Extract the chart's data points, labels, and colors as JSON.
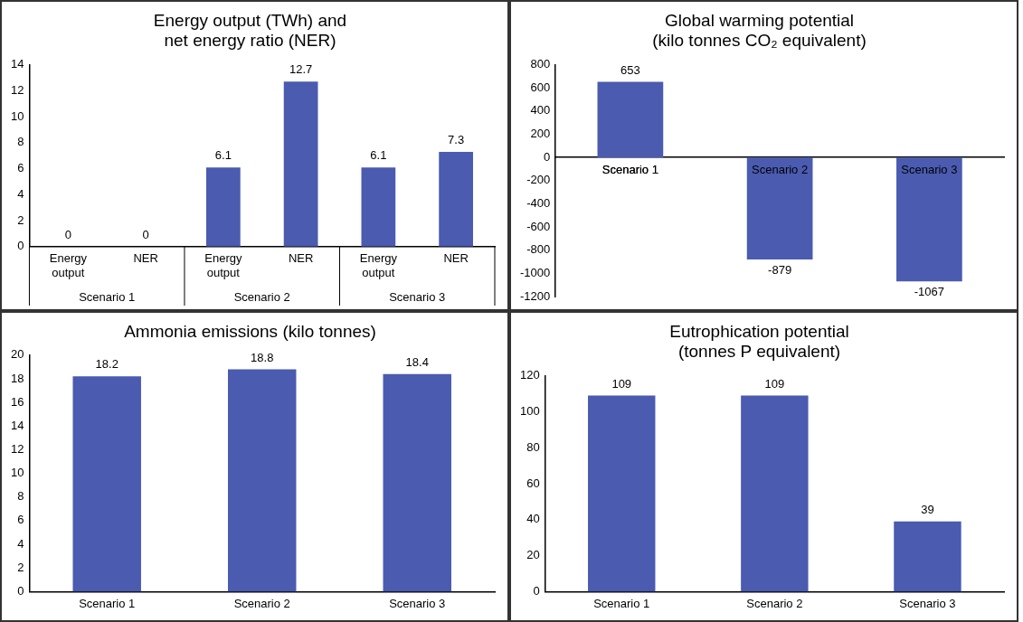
{
  "chart_data": [
    {
      "type": "bar",
      "title": "Energy output (TWh) and\nnet energy ratio (NER)",
      "categories": [
        "Energy output",
        "NER",
        "Energy output",
        "NER",
        "Energy output",
        "NER"
      ],
      "values": [
        0,
        0,
        6.1,
        12.7,
        6.1,
        7.3
      ],
      "color": "#4a5bb0",
      "ylim": [
        0,
        14
      ],
      "yticks": [
        0,
        2,
        4,
        6,
        8,
        10,
        12,
        14
      ],
      "grid": false,
      "legend": false,
      "data_labels": true,
      "annotations": [
        "Scenario 1",
        "Scenario 2",
        "Scenario 3"
      ]
    },
    {
      "type": "bar",
      "title": "Global warming potential\n(kilo tonnes CO₂ equivalent)",
      "categories": [
        "Scenario 1",
        "Scenario 2",
        "Scenario 3"
      ],
      "values": [
        653,
        -879,
        -1067
      ],
      "color": "#4a5bb0",
      "ylim": [
        -1200,
        800
      ],
      "yticks": [
        -1200,
        -1000,
        -800,
        -600,
        -400,
        -200,
        0,
        200,
        400,
        600,
        800
      ],
      "grid": false,
      "legend": false,
      "data_labels": true
    },
    {
      "type": "bar",
      "title": "Ammonia emissions (kilo tonnes)",
      "categories": [
        "Scenario 1",
        "Scenario 2",
        "Scenario 3"
      ],
      "values": [
        18.2,
        18.8,
        18.4
      ],
      "color": "#4a5bb0",
      "ylim": [
        0,
        20
      ],
      "yticks": [
        0,
        2,
        4,
        6,
        8,
        10,
        12,
        14,
        16,
        18,
        20
      ],
      "grid": false,
      "legend": false,
      "data_labels": true
    },
    {
      "type": "bar",
      "title": "Eutrophication potential\n(tonnes P equivalent)",
      "categories": [
        "Scenario 1",
        "Scenario 2",
        "Scenario 3"
      ],
      "values": [
        109,
        109,
        39
      ],
      "color": "#4a5bb0",
      "ylim": [
        0,
        120
      ],
      "yticks": [
        0,
        20,
        40,
        60,
        80,
        100,
        120
      ],
      "grid": false,
      "legend": false,
      "data_labels": true
    }
  ]
}
